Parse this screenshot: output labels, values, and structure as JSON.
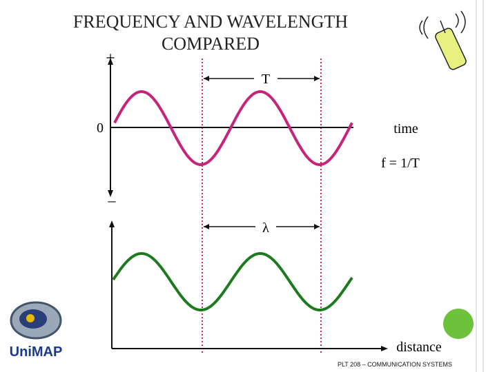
{
  "title": {
    "line1": "FREQUENCY AND WAVELENGTH",
    "line2": "COMPARED"
  },
  "time_graph": {
    "plus": "+",
    "zero": "0",
    "minus": "–",
    "period": "T",
    "axis": "time",
    "formula": "f = 1/T"
  },
  "distance_graph": {
    "wavelength": "λ",
    "axis": "distance"
  },
  "logo": "UniMAP",
  "footer": "PLT 208 – COMMUNICATION SYSTEMS"
}
